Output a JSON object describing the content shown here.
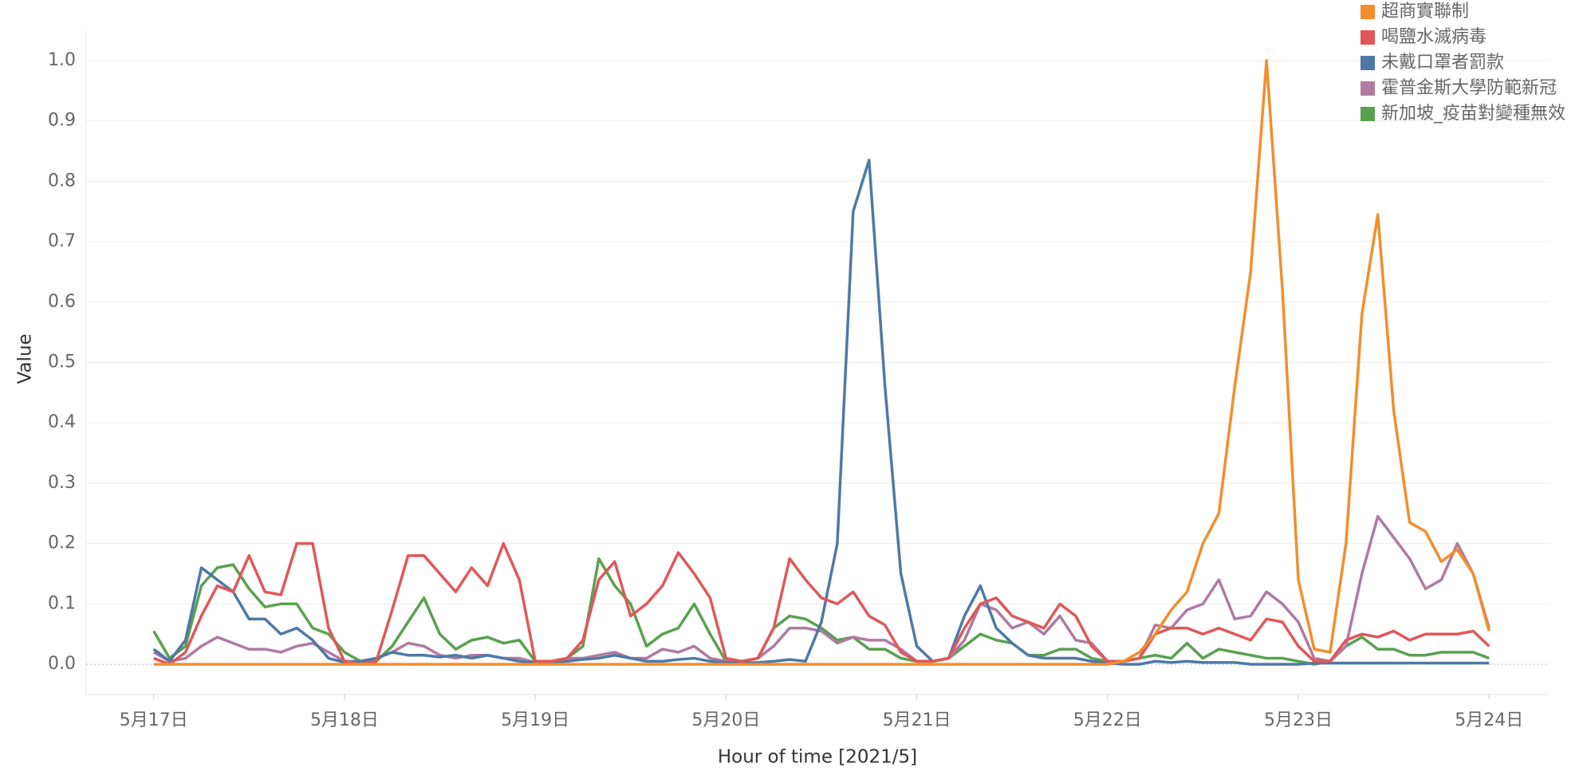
{
  "chart_data": {
    "type": "line",
    "x_label": "Hour of time [2021/5]",
    "y_label": "Value",
    "x": [
      0,
      2,
      4,
      6,
      8,
      10,
      12,
      14,
      16,
      18,
      20,
      22,
      24,
      26,
      28,
      30,
      32,
      34,
      36,
      38,
      40,
      42,
      44,
      46,
      48,
      50,
      52,
      54,
      56,
      58,
      60,
      62,
      64,
      66,
      68,
      70,
      72,
      74,
      76,
      78,
      80,
      82,
      84,
      86,
      88,
      90,
      92,
      94,
      96,
      98,
      100,
      102,
      104,
      106,
      108,
      110,
      112,
      114,
      116,
      118,
      120,
      122,
      124,
      126,
      128,
      130,
      132,
      134,
      136,
      138,
      140,
      142,
      144,
      146,
      148,
      150,
      152,
      154,
      156,
      158,
      160,
      162,
      164,
      166,
      168
    ],
    "xlim": [
      -8.5,
      175.6
    ],
    "xticks": [
      {
        "value": 0,
        "label": "5月17日"
      },
      {
        "value": 24,
        "label": "5月18日"
      },
      {
        "value": 48,
        "label": "5月19日"
      },
      {
        "value": 72,
        "label": "5月20日"
      },
      {
        "value": 96,
        "label": "5月21日"
      },
      {
        "value": 120,
        "label": "5月22日"
      },
      {
        "value": 144,
        "label": "5月23日"
      },
      {
        "value": 168,
        "label": "5月24日"
      }
    ],
    "ylim": [
      -0.05,
      1.05
    ],
    "yticks": [
      {
        "value": 0,
        "label": "0.0"
      },
      0.1,
      0.2,
      0.3,
      0.4,
      0.5,
      0.6,
      0.7,
      0.8,
      0.9,
      {
        "value": 1,
        "label": "1.0"
      }
    ],
    "grid": true,
    "legend": "top-right",
    "series": [
      {
        "name": "超商實聯制",
        "color": "#f28e2b",
        "values": [
          0,
          0,
          0,
          0,
          0,
          0,
          0,
          0,
          0,
          0,
          0,
          0,
          0,
          0,
          0,
          0,
          0,
          0,
          0,
          0,
          0,
          0,
          0,
          0,
          0,
          0,
          0,
          0,
          0,
          0,
          0,
          0,
          0,
          0,
          0,
          0,
          0,
          0,
          0,
          0,
          0,
          0,
          0,
          0,
          0,
          0,
          0,
          0,
          0,
          0,
          0,
          0,
          0,
          0,
          0,
          0,
          0,
          0,
          0,
          0,
          0,
          0.005,
          0.02,
          0.05,
          0.09,
          0.12,
          0.2,
          0.25,
          0.46,
          0.65,
          1.0,
          0.62,
          0.14,
          0.025,
          0.02,
          0.2,
          0.58,
          0.745,
          0.42,
          0.235,
          0.22,
          0.17,
          0.19,
          0.15,
          0.055
        ]
      },
      {
        "name": "喝鹽水滅病毒",
        "color": "#e15759",
        "values": [
          0.01,
          0.0,
          0.02,
          0.08,
          0.13,
          0.12,
          0.18,
          0.12,
          0.115,
          0.2,
          0.2,
          0.06,
          0.005,
          0.0,
          0.005,
          0.09,
          0.18,
          0.18,
          0.15,
          0.12,
          0.16,
          0.13,
          0.2,
          0.14,
          0.005,
          0.005,
          0.01,
          0.04,
          0.14,
          0.17,
          0.08,
          0.1,
          0.13,
          0.185,
          0.15,
          0.11,
          0.01,
          0.005,
          0.01,
          0.06,
          0.175,
          0.14,
          0.11,
          0.1,
          0.12,
          0.08,
          0.065,
          0.02,
          0.005,
          0.005,
          0.01,
          0.06,
          0.1,
          0.11,
          0.08,
          0.07,
          0.06,
          0.1,
          0.08,
          0.03,
          0.005,
          0.005,
          0.01,
          0.05,
          0.06,
          0.06,
          0.05,
          0.06,
          0.05,
          0.04,
          0.075,
          0.07,
          0.03,
          0.005,
          0.005,
          0.04,
          0.05,
          0.045,
          0.055,
          0.04,
          0.05,
          0.05,
          0.05,
          0.055,
          0.03
        ]
      },
      {
        "name": "未戴口罩者罰款",
        "color": "#4e79a7",
        "values": [
          0.025,
          0.005,
          0.04,
          0.16,
          0.14,
          0.12,
          0.075,
          0.075,
          0.05,
          0.06,
          0.04,
          0.01,
          0.003,
          0.005,
          0.01,
          0.02,
          0.015,
          0.015,
          0.012,
          0.015,
          0.01,
          0.015,
          0.01,
          0.005,
          0.003,
          0.003,
          0.005,
          0.008,
          0.01,
          0.015,
          0.01,
          0.005,
          0.005,
          0.008,
          0.01,
          0.005,
          0.003,
          0.002,
          0.003,
          0.005,
          0.008,
          0.005,
          0.07,
          0.2,
          0.75,
          0.835,
          0.46,
          0.15,
          0.03,
          0.005,
          0.01,
          0.08,
          0.13,
          0.06,
          0.035,
          0.015,
          0.01,
          0.01,
          0.01,
          0.005,
          0.002,
          0,
          0,
          0.005,
          0.003,
          0.005,
          0.003,
          0.003,
          0.003,
          0,
          0,
          0,
          0,
          0.002,
          0.002,
          0.002,
          0.002,
          0.002,
          0.002,
          0.002,
          0.002,
          0.002,
          0.002,
          0.002,
          0.002
        ]
      },
      {
        "name": "霍普金斯大學防範新冠",
        "color": "#b07aa1",
        "values": [
          0.02,
          0.005,
          0.01,
          0.03,
          0.045,
          0.035,
          0.025,
          0.025,
          0.02,
          0.03,
          0.035,
          0.02,
          0.005,
          0.005,
          0.01,
          0.02,
          0.035,
          0.03,
          0.015,
          0.01,
          0.015,
          0.015,
          0.01,
          0.01,
          0.003,
          0.005,
          0.01,
          0.01,
          0.015,
          0.02,
          0.01,
          0.01,
          0.025,
          0.02,
          0.03,
          0.01,
          0.005,
          0.005,
          0.01,
          0.03,
          0.06,
          0.06,
          0.055,
          0.035,
          0.045,
          0.04,
          0.04,
          0.025,
          0.005,
          0.005,
          0.01,
          0.04,
          0.1,
          0.09,
          0.06,
          0.07,
          0.05,
          0.08,
          0.04,
          0.035,
          0.005,
          0.005,
          0.01,
          0.065,
          0.06,
          0.09,
          0.1,
          0.14,
          0.075,
          0.08,
          0.12,
          0.1,
          0.07,
          0.01,
          0.005,
          0.03,
          0.15,
          0.245,
          0.21,
          0.175,
          0.125,
          0.14,
          0.2,
          0.15,
          0.06
        ]
      },
      {
        "name": "新加坡_疫苗對變種無效",
        "color": "#59a14f",
        "values": [
          0.055,
          0.01,
          0.03,
          0.13,
          0.16,
          0.165,
          0.125,
          0.095,
          0.1,
          0.1,
          0.06,
          0.05,
          0.02,
          0.005,
          0.005,
          0.03,
          0.07,
          0.11,
          0.05,
          0.025,
          0.04,
          0.045,
          0.035,
          0.04,
          0.005,
          0.005,
          0.01,
          0.03,
          0.175,
          0.13,
          0.1,
          0.03,
          0.05,
          0.06,
          0.1,
          0.05,
          0.005,
          0.005,
          0.01,
          0.06,
          0.08,
          0.075,
          0.06,
          0.04,
          0.045,
          0.025,
          0.025,
          0.01,
          0.005,
          0.005,
          0.01,
          0.03,
          0.05,
          0.04,
          0.035,
          0.015,
          0.015,
          0.025,
          0.025,
          0.01,
          0.005,
          0.005,
          0.01,
          0.015,
          0.01,
          0.035,
          0.01,
          0.025,
          0.02,
          0.015,
          0.01,
          0.01,
          0.005,
          0.0,
          0.005,
          0.03,
          0.045,
          0.025,
          0.025,
          0.015,
          0.015,
          0.02,
          0.02,
          0.02,
          0.01
        ]
      }
    ]
  }
}
